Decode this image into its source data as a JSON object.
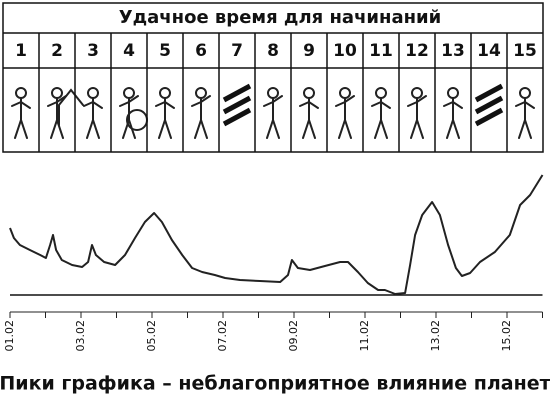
{
  "header": {
    "title": "Удачное время для начинаний"
  },
  "table": {
    "columns": [
      1,
      2,
      3,
      4,
      5,
      6,
      7,
      8,
      9,
      10,
      11,
      12,
      13,
      14,
      15
    ]
  },
  "chart_data": {
    "type": "line",
    "x": [
      1.0,
      1.11,
      1.28,
      1.56,
      1.85,
      2.01,
      2.13,
      2.21,
      2.3,
      2.46,
      2.75,
      3.03,
      3.2,
      3.31,
      3.42,
      3.65,
      3.96,
      4.24,
      4.52,
      4.8,
      5.06,
      5.28,
      5.56,
      5.85,
      6.13,
      6.41,
      6.77,
      7.06,
      7.48,
      8.04,
      8.61,
      8.83,
      8.94,
      9.11,
      9.45,
      9.87,
      10.3,
      10.52,
      10.8,
      11.08,
      11.37,
      11.56,
      11.85,
      12.13,
      12.27,
      12.41,
      12.61,
      12.89,
      13.11,
      13.34,
      13.56,
      13.73,
      13.96,
      14.24,
      14.66,
      15.08,
      15.37,
      15.65,
      16.0
    ],
    "values": [
      72,
      62,
      55,
      50,
      45,
      42,
      55,
      65,
      50,
      40,
      35,
      33,
      38,
      55,
      45,
      38,
      35,
      45,
      62,
      78,
      87,
      78,
      60,
      45,
      32,
      28,
      25,
      22,
      20,
      19,
      18,
      25,
      40,
      32,
      30,
      34,
      38,
      38,
      28,
      17,
      10,
      10,
      6,
      7,
      35,
      65,
      85,
      98,
      85,
      55,
      32,
      24,
      27,
      38,
      48,
      65,
      95,
      105,
      125
    ],
    "color": "#222222",
    "xlim": [
      1,
      16
    ],
    "ylim": [
      0,
      130
    ],
    "xticks": [
      {
        "value": 1,
        "label": "01.02"
      },
      {
        "value": 3,
        "label": "03.02"
      },
      {
        "value": 5,
        "label": "05.02"
      },
      {
        "value": 7,
        "label": "07.02"
      },
      {
        "value": 9,
        "label": "09.02"
      },
      {
        "value": 11,
        "label": "11.02"
      },
      {
        "value": 13,
        "label": "13.02"
      },
      {
        "value": 15,
        "label": "15.02"
      }
    ],
    "xminorticks": [
      2,
      4,
      6,
      8,
      10,
      12,
      14,
      16
    ],
    "baseline": 5,
    "caption": "Пики графика – неблагоприятное влияние планет"
  }
}
